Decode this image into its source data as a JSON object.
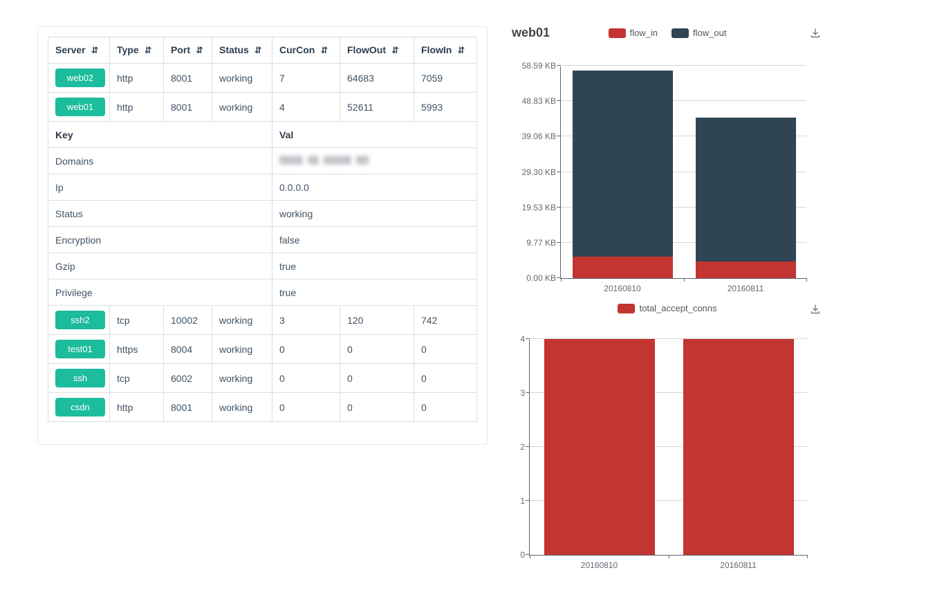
{
  "colors": {
    "accent_green": "#1cbc9c",
    "series_red": "#c23531",
    "series_dark": "#2f4554"
  },
  "icons": {
    "sort": "⇵",
    "download": "download-icon"
  },
  "table": {
    "columns": [
      {
        "label": "Server"
      },
      {
        "label": "Type"
      },
      {
        "label": "Port"
      },
      {
        "label": "Status"
      },
      {
        "label": "CurCon"
      },
      {
        "label": "FlowOut"
      },
      {
        "label": "FlowIn"
      }
    ],
    "top_rows": [
      {
        "server": "web02",
        "type": "http",
        "port": "8001",
        "status": "working",
        "curcon": "7",
        "flowout": "64683",
        "flowin": "7059"
      },
      {
        "server": "web01",
        "type": "http",
        "port": "8001",
        "status": "working",
        "curcon": "4",
        "flowout": "52611",
        "flowin": "5993"
      }
    ],
    "detail": {
      "key_header": "Key",
      "val_header": "Val",
      "rows": [
        {
          "key": "Domains",
          "value": "",
          "redacted": true
        },
        {
          "key": "Ip",
          "value": "0.0.0.0"
        },
        {
          "key": "Status",
          "value": "working"
        },
        {
          "key": "Encryption",
          "value": "false"
        },
        {
          "key": "Gzip",
          "value": "true"
        },
        {
          "key": "Privilege",
          "value": "true"
        }
      ]
    },
    "bottom_rows": [
      {
        "server": "ssh2",
        "type": "tcp",
        "port": "10002",
        "status": "working",
        "curcon": "3",
        "flowout": "120",
        "flowin": "742"
      },
      {
        "server": "test01",
        "type": "https",
        "port": "8004",
        "status": "working",
        "curcon": "0",
        "flowout": "0",
        "flowin": "0"
      },
      {
        "server": "ssh",
        "type": "tcp",
        "port": "6002",
        "status": "working",
        "curcon": "0",
        "flowout": "0",
        "flowin": "0"
      },
      {
        "server": "csdn",
        "type": "http",
        "port": "8001",
        "status": "working",
        "curcon": "0",
        "flowout": "0",
        "flowin": "0"
      }
    ]
  },
  "chart_data": [
    {
      "type": "bar",
      "stacked": true,
      "title": "web01",
      "categories": [
        "20160810",
        "20160811"
      ],
      "series": [
        {
          "name": "flow_in",
          "color": "#c23531",
          "values": [
            5.85,
            4.56
          ]
        },
        {
          "name": "flow_out",
          "color": "#2f4554",
          "values": [
            51.4,
            39.7
          ]
        }
      ],
      "unit": "KB",
      "ylim": [
        0,
        58.59
      ],
      "y_ticks": [
        "0.00 KB",
        "9.77 KB",
        "19.53 KB",
        "29.30 KB",
        "39.06 KB",
        "48.83 KB",
        "58.59 KB"
      ],
      "xlabel": "",
      "ylabel": "",
      "grid": true,
      "legend_position": "top"
    },
    {
      "type": "bar",
      "stacked": false,
      "title": "",
      "categories": [
        "20160810",
        "20160811"
      ],
      "series": [
        {
          "name": "total_accept_conns",
          "color": "#c23531",
          "values": [
            4,
            4
          ]
        }
      ],
      "ylim": [
        0,
        4
      ],
      "y_ticks": [
        "0",
        "1",
        "2",
        "3",
        "4"
      ],
      "xlabel": "",
      "ylabel": "",
      "grid": true,
      "legend_position": "top"
    }
  ]
}
